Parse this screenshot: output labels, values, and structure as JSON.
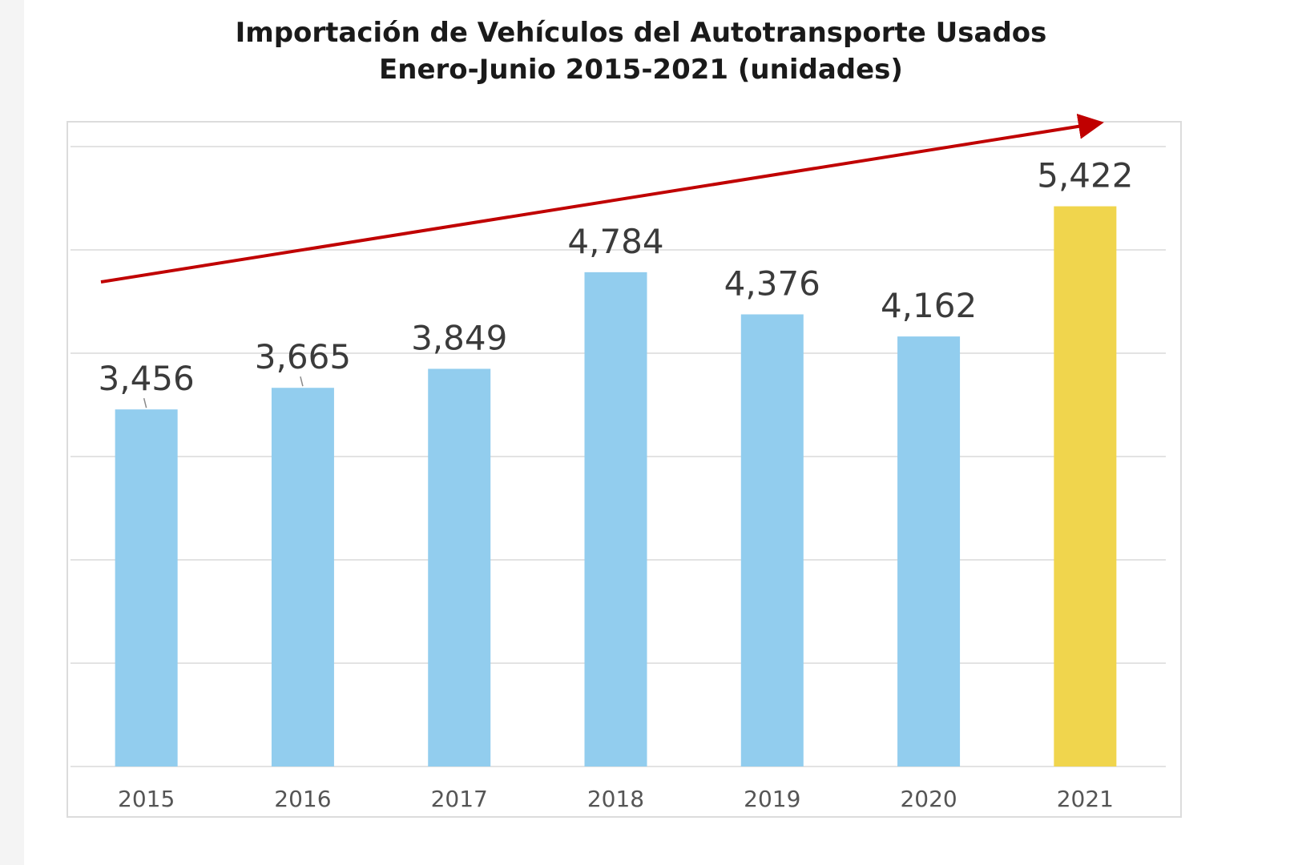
{
  "chart_data": {
    "type": "bar",
    "title": "Importación de Vehículos del Autotransporte Usados",
    "subtitle": "Enero-Junio 2015-2021 (unidades)",
    "categories": [
      "2015",
      "2016",
      "2017",
      "2018",
      "2019",
      "2020",
      "2021"
    ],
    "values": [
      3456,
      3665,
      3849,
      4784,
      4376,
      4162,
      5422
    ],
    "value_labels": [
      "3,456",
      "3,665",
      "3,849",
      "4,784",
      "4,376",
      "4,162",
      "5,422"
    ],
    "ylim": [
      0,
      6000
    ],
    "gridline_step": 1000,
    "grid": true,
    "xlabel": "",
    "ylabel": "",
    "bar_colors": [
      "#92cdee",
      "#92cdee",
      "#92cdee",
      "#92cdee",
      "#92cdee",
      "#92cdee",
      "#f0d54d"
    ],
    "annotations": [
      {
        "type": "trend-arrow",
        "direction": "upward",
        "color": "#c00000"
      }
    ]
  },
  "colors": {
    "bar": "#92cdee",
    "highlight_bar": "#f0d54d",
    "trend_arrow": "#c00000"
  }
}
